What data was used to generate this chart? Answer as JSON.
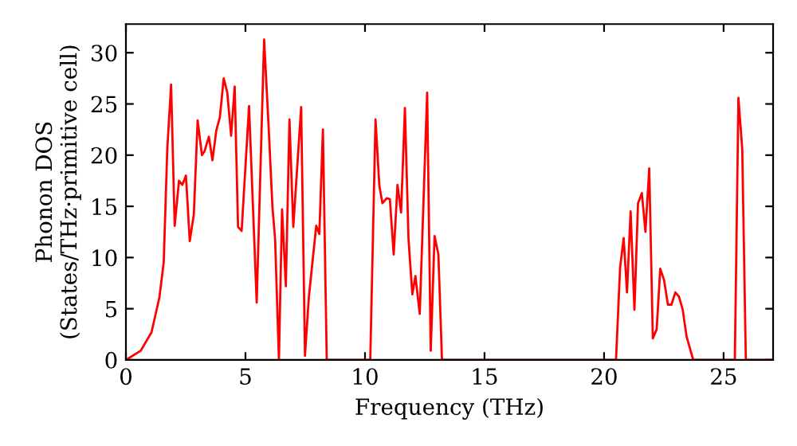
{
  "chart_data": {
    "type": "line",
    "xlabel": "Frequency (THz)",
    "ylabel": "Phonon DOS\n(States/THz·primitive cell)",
    "xlim": [
      0,
      27.07
    ],
    "ylim": [
      0,
      32.8
    ],
    "xticks": [
      0,
      5,
      10,
      15,
      20,
      25
    ],
    "yticks": [
      0,
      5,
      10,
      15,
      20,
      25,
      30
    ],
    "grid": false,
    "marker": "none",
    "line_style": "solid",
    "series": [
      {
        "color": "#ff0000",
        "x": [
          0,
          0.62,
          1.07,
          1.4,
          1.58,
          1.73,
          1.89,
          2.04,
          2.22,
          2.36,
          2.51,
          2.67,
          2.84,
          3.0,
          3.18,
          3.29,
          3.47,
          3.62,
          3.78,
          3.93,
          4.09,
          4.24,
          4.4,
          4.55,
          4.69,
          4.84,
          5.15,
          5.47,
          5.78,
          5.96,
          6.13,
          6.24,
          6.4,
          6.53,
          6.69,
          6.84,
          7.0,
          7.33,
          7.49,
          7.65,
          7.96,
          8.09,
          8.24,
          8.4,
          10.22,
          10.44,
          10.6,
          10.73,
          10.91,
          11.04,
          11.2,
          11.36,
          11.51,
          11.67,
          11.82,
          11.98,
          12.11,
          12.29,
          12.6,
          12.75,
          12.91,
          13.07,
          13.22,
          20.5,
          20.67,
          20.82,
          20.96,
          21.11,
          21.27,
          21.42,
          21.58,
          21.73,
          21.89,
          22.04,
          22.2,
          22.35,
          22.51,
          22.67,
          22.82,
          22.98,
          23.13,
          23.29,
          23.45,
          23.73,
          25.47,
          25.62,
          25.78,
          25.93,
          27.07
        ],
        "values": [
          0,
          0.9,
          2.7,
          6.1,
          9.5,
          20.6,
          26.9,
          13.1,
          17.5,
          17.1,
          18,
          11.6,
          14.2,
          23.4,
          20.0,
          20.4,
          21.8,
          19.5,
          22.4,
          23.7,
          27.5,
          26.1,
          21.9,
          26.7,
          13.0,
          12.6,
          24.8,
          5.6,
          31.3,
          23.2,
          14.9,
          11.8,
          0,
          14.7,
          7.2,
          23.5,
          13.0,
          24.7,
          0.4,
          6.1,
          13.1,
          12.3,
          22.5,
          0,
          0,
          23.5,
          17.0,
          15.3,
          15.8,
          15.7,
          10.3,
          17.1,
          14.4,
          24.6,
          11.8,
          6.4,
          8.2,
          4.5,
          26.1,
          0.9,
          12.1,
          10.3,
          0,
          0,
          9.0,
          11.9,
          6.6,
          14.5,
          4.9,
          15.3,
          16.3,
          12.5,
          18.7,
          2.1,
          3.0,
          8.9,
          7.8,
          5.4,
          5.4,
          6.6,
          6.2,
          4.9,
          2.3,
          0,
          0,
          25.6,
          20.6,
          0,
          0
        ]
      }
    ]
  }
}
